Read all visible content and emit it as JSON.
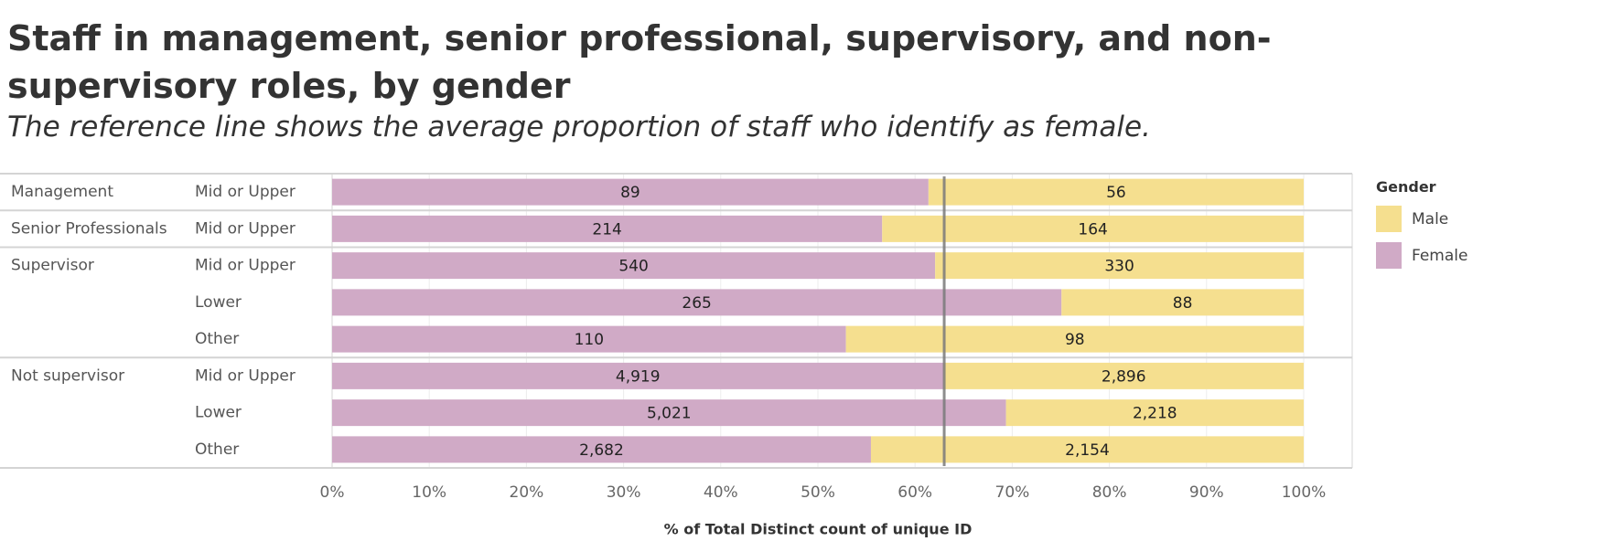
{
  "title": "Staff in management, senior professional, supervisory, and non-supervisory roles, by gender",
  "subtitle": "The reference line shows the average proportion of staff who identify as female.",
  "legend": {
    "title": "Gender",
    "items": [
      {
        "label": "Male",
        "color": "#f5df8f"
      },
      {
        "label": "Female",
        "color": "#d0aac6"
      }
    ]
  },
  "chart_data": {
    "type": "bar",
    "orientation": "horizontal-stacked-percent",
    "xlabel": "% of Total Distinct count of unique ID",
    "xlim": [
      0,
      100
    ],
    "xticks": [
      "0%",
      "10%",
      "20%",
      "30%",
      "40%",
      "50%",
      "60%",
      "70%",
      "80%",
      "90%",
      "100%"
    ],
    "grid": true,
    "legend_position": "right",
    "reference_line": 63,
    "groups": [
      {
        "label": "Management",
        "rows": [
          {
            "label": "Mid or Upper",
            "female": 89,
            "male": 56,
            "female_label": "89",
            "male_label": "56"
          }
        ]
      },
      {
        "label": "Senior Professionals",
        "rows": [
          {
            "label": "Mid or Upper",
            "female": 214,
            "male": 164,
            "female_label": "214",
            "male_label": "164"
          }
        ]
      },
      {
        "label": "Supervisor",
        "rows": [
          {
            "label": "Mid or Upper",
            "female": 540,
            "male": 330,
            "female_label": "540",
            "male_label": "330"
          },
          {
            "label": "Lower",
            "female": 265,
            "male": 88,
            "female_label": "265",
            "male_label": "88"
          },
          {
            "label": "Other",
            "female": 110,
            "male": 98,
            "female_label": "110",
            "male_label": "98"
          }
        ]
      },
      {
        "label": "Not supervisor",
        "rows": [
          {
            "label": "Mid or Upper",
            "female": 4919,
            "male": 2896,
            "female_label": "4,919",
            "male_label": "2,896"
          },
          {
            "label": "Lower",
            "female": 5021,
            "male": 2218,
            "female_label": "5,021",
            "male_label": "2,218"
          },
          {
            "label": "Other",
            "female": 2682,
            "male": 2154,
            "female_label": "2,682",
            "male_label": "2,154"
          }
        ]
      }
    ]
  }
}
